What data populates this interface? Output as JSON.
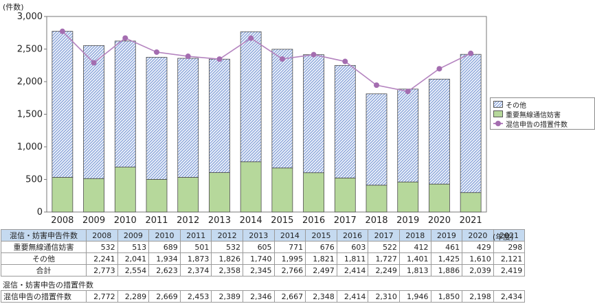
{
  "chart_data": {
    "type": "bar",
    "stacked": true,
    "categories": [
      "2008",
      "2009",
      "2010",
      "2011",
      "2012",
      "2013",
      "2014",
      "2015",
      "2016",
      "2017",
      "2018",
      "2019",
      "2020",
      "2021"
    ],
    "series": [
      {
        "name": "重要無線通信妨害",
        "values": [
          532,
          513,
          689,
          501,
          532,
          605,
          771,
          676,
          603,
          522,
          412,
          461,
          429,
          298
        ],
        "color": "#b6d89b"
      },
      {
        "name": "その他",
        "values": [
          2241,
          2041,
          1934,
          1873,
          1826,
          1740,
          1995,
          1821,
          1811,
          1727,
          1401,
          1425,
          1610,
          2121
        ],
        "color": "#8fa9dc"
      },
      {
        "name": "混信申告の措置件数",
        "type": "line",
        "values": [
          2772,
          2289,
          2669,
          2453,
          2389,
          2346,
          2667,
          2348,
          2414,
          2310,
          1946,
          1850,
          2198,
          2434
        ],
        "color": "#a46db0"
      }
    ],
    "totals": [
      2773,
      2554,
      2623,
      2374,
      2358,
      2345,
      2766,
      2497,
      2414,
      2249,
      1813,
      1886,
      2039,
      2419
    ],
    "ylabel": "(件数)",
    "ylim": [
      0,
      3000
    ],
    "yticks": [
      "0",
      "500",
      "1,000",
      "1,500",
      "2,000",
      "2,500",
      "3,000"
    ],
    "grid": false,
    "legend_position": "right",
    "legend": [
      "その他",
      "重要無線通信妨害",
      "混信申告の措置件数"
    ]
  },
  "table1": {
    "header_label": "混信・妨害申告件数",
    "years": [
      "2008",
      "2009",
      "2010",
      "2011",
      "2012",
      "2013",
      "2014",
      "2015",
      "2016",
      "2017",
      "2018",
      "2019",
      "2020",
      "2021"
    ],
    "unit": "(年度)",
    "rows": [
      {
        "label": "重要無線通信妨害",
        "values": [
          "532",
          "513",
          "689",
          "501",
          "532",
          "605",
          "771",
          "676",
          "603",
          "522",
          "412",
          "461",
          "429",
          "298"
        ]
      },
      {
        "label": "その他",
        "values": [
          "2,241",
          "2,041",
          "1,934",
          "1,873",
          "1,826",
          "1,740",
          "1,995",
          "1,821",
          "1,811",
          "1,727",
          "1,401",
          "1,425",
          "1,610",
          "2,121"
        ]
      },
      {
        "label": "合計",
        "values": [
          "2,773",
          "2,554",
          "2,623",
          "2,374",
          "2,358",
          "2,345",
          "2,766",
          "2,497",
          "2,414",
          "2,249",
          "1,813",
          "1,886",
          "2,039",
          "2,419"
        ]
      }
    ]
  },
  "table2": {
    "caption": "混信・妨害申告の措置件数",
    "row": {
      "label": "混信申告の措置件数",
      "values": [
        "2,772",
        "2,289",
        "2,669",
        "2,453",
        "2,389",
        "2,346",
        "2,667",
        "2,348",
        "2,414",
        "2,310",
        "1,946",
        "1,850",
        "2,198",
        "2,434"
      ]
    }
  }
}
